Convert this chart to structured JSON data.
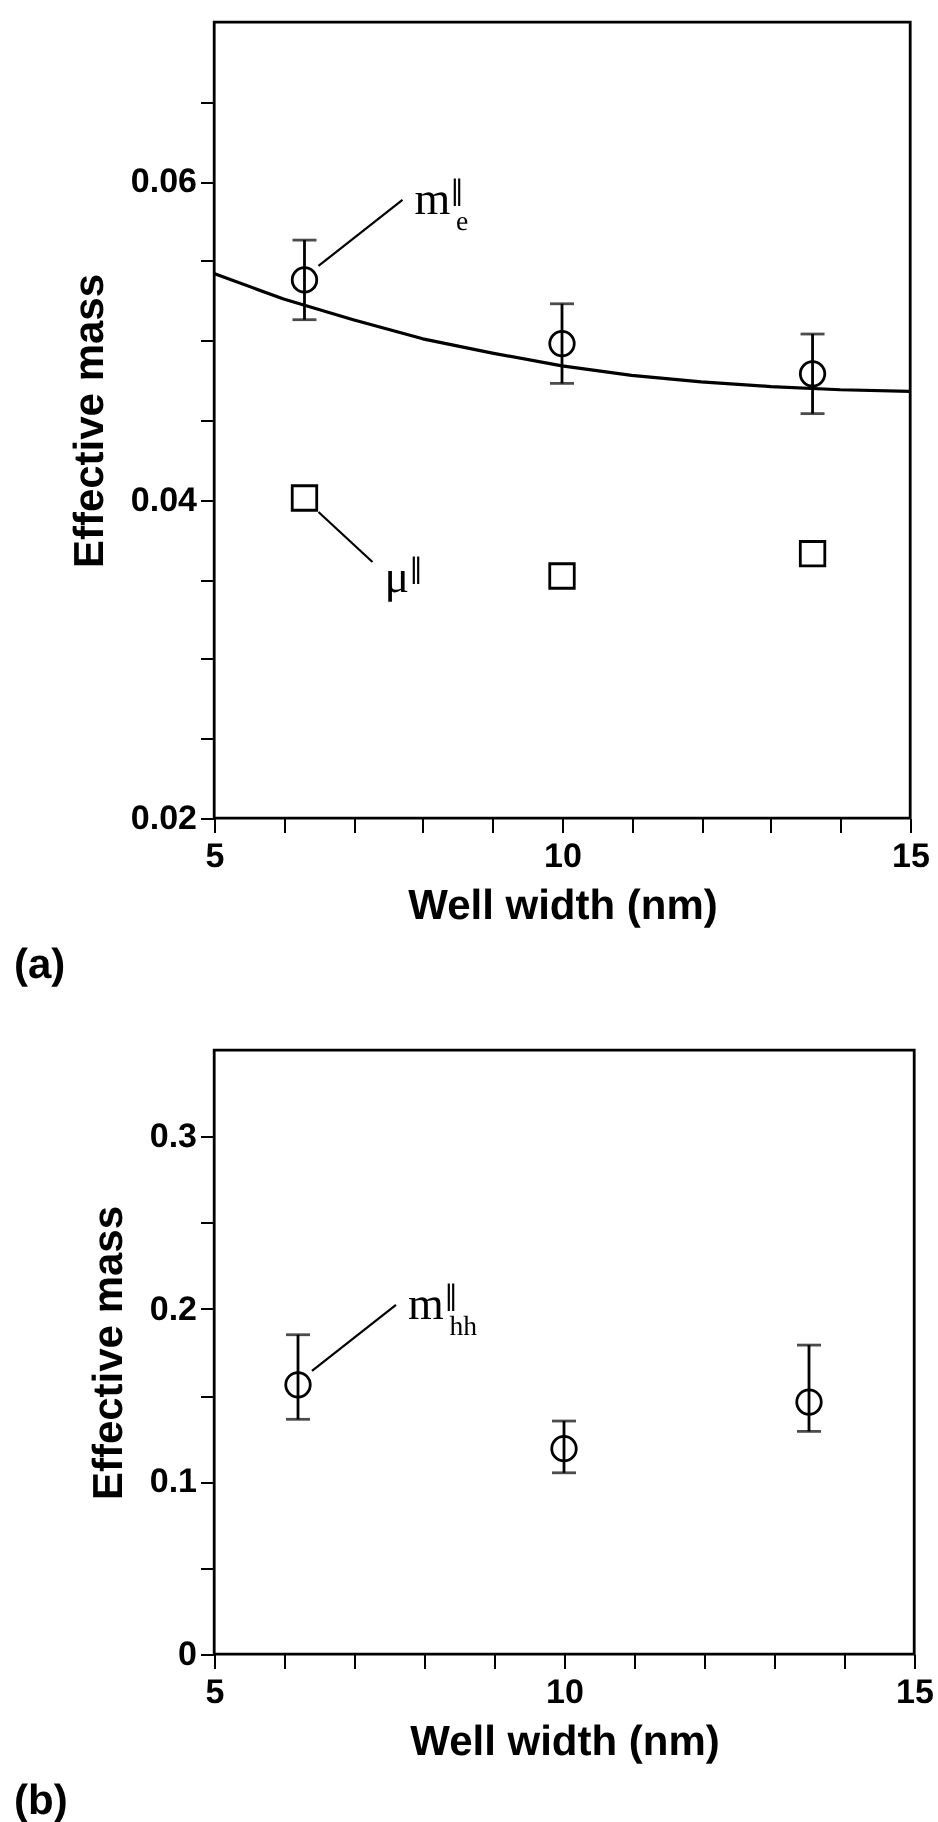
{
  "chart_data": [
    {
      "type": "scatter",
      "xlabel": "Well width (nm)",
      "ylabel": "Effective mass",
      "annotations": [
        "(a)"
      ],
      "xlim": [
        5,
        15
      ],
      "ylim": [
        0.02,
        0.07
      ],
      "xticks": [
        5,
        {
          "value": 6,
          "label": null
        },
        {
          "value": 7,
          "label": null
        },
        {
          "value": 8,
          "label": null
        },
        {
          "value": 9,
          "label": null
        },
        10,
        {
          "value": 11,
          "label": null
        },
        {
          "value": 12,
          "label": null
        },
        {
          "value": 13,
          "label": null
        },
        {
          "value": 14,
          "label": null
        },
        15
      ],
      "yticks": [
        0.02,
        {
          "value": 0.025,
          "label": null
        },
        {
          "value": 0.03,
          "label": null
        },
        {
          "value": 0.035,
          "label": null
        },
        0.04,
        {
          "value": 0.045,
          "label": null
        },
        {
          "value": 0.05,
          "label": null
        },
        {
          "value": 0.055,
          "label": null
        },
        0.06,
        {
          "value": 0.065,
          "label": null
        }
      ],
      "grid": false,
      "series": [
        {
          "type": "line",
          "color": "#000000",
          "marker": "none",
          "line_style": "solid",
          "x": [
            5,
            6,
            7,
            8,
            9,
            10,
            11,
            12,
            13,
            14,
            15
          ],
          "values": [
            0.0542,
            0.0526,
            0.0513,
            0.0501,
            0.0492,
            0.0484,
            0.0478,
            0.0474,
            0.0471,
            0.0469,
            0.0468
          ]
        },
        {
          "name": "m$^{∥}$$_{e}$",
          "color": "#000000",
          "marker": "circle",
          "x": [
            6.3,
            10,
            13.6
          ],
          "values": [
            0.0538,
            0.0498,
            0.0479
          ],
          "errors": [
            0.0025,
            0.0025,
            0.0025
          ]
        },
        {
          "name": "μ$^{∥}$",
          "color": "#000000",
          "marker": "square",
          "x": [
            6.3,
            10,
            13.6
          ],
          "values": [
            0.0401,
            0.0352,
            0.0366
          ]
        }
      ]
    },
    {
      "type": "scatter",
      "xlabel": "Well width (nm)",
      "ylabel": "Effective mass",
      "annotations": [
        "(b)"
      ],
      "xlim": [
        5,
        15
      ],
      "ylim": [
        0,
        0.35
      ],
      "xticks": [
        5,
        {
          "value": 6,
          "label": null
        },
        {
          "value": 7,
          "label": null
        },
        {
          "value": 8,
          "label": null
        },
        {
          "value": 9,
          "label": null
        },
        10,
        {
          "value": 11,
          "label": null
        },
        {
          "value": 12,
          "label": null
        },
        {
          "value": 13,
          "label": null
        },
        {
          "value": 14,
          "label": null
        },
        15
      ],
      "yticks": [
        0,
        {
          "value": 0.05,
          "label": null
        },
        0.1,
        {
          "value": 0.15,
          "label": null
        },
        0.2,
        {
          "value": 0.25,
          "label": null
        },
        0.3
      ],
      "grid": false,
      "series": [
        {
          "name": "m$^{∥}$$_{hh}$",
          "color": "#000000",
          "marker": "circle",
          "x": [
            6.2,
            10,
            13.5
          ],
          "values": [
            0.156,
            0.119,
            0.146
          ],
          "errors": [
            [
              0.136,
              0.185
            ],
            [
              0.105,
              0.135
            ],
            [
              0.129,
              0.179
            ]
          ]
        }
      ]
    }
  ]
}
